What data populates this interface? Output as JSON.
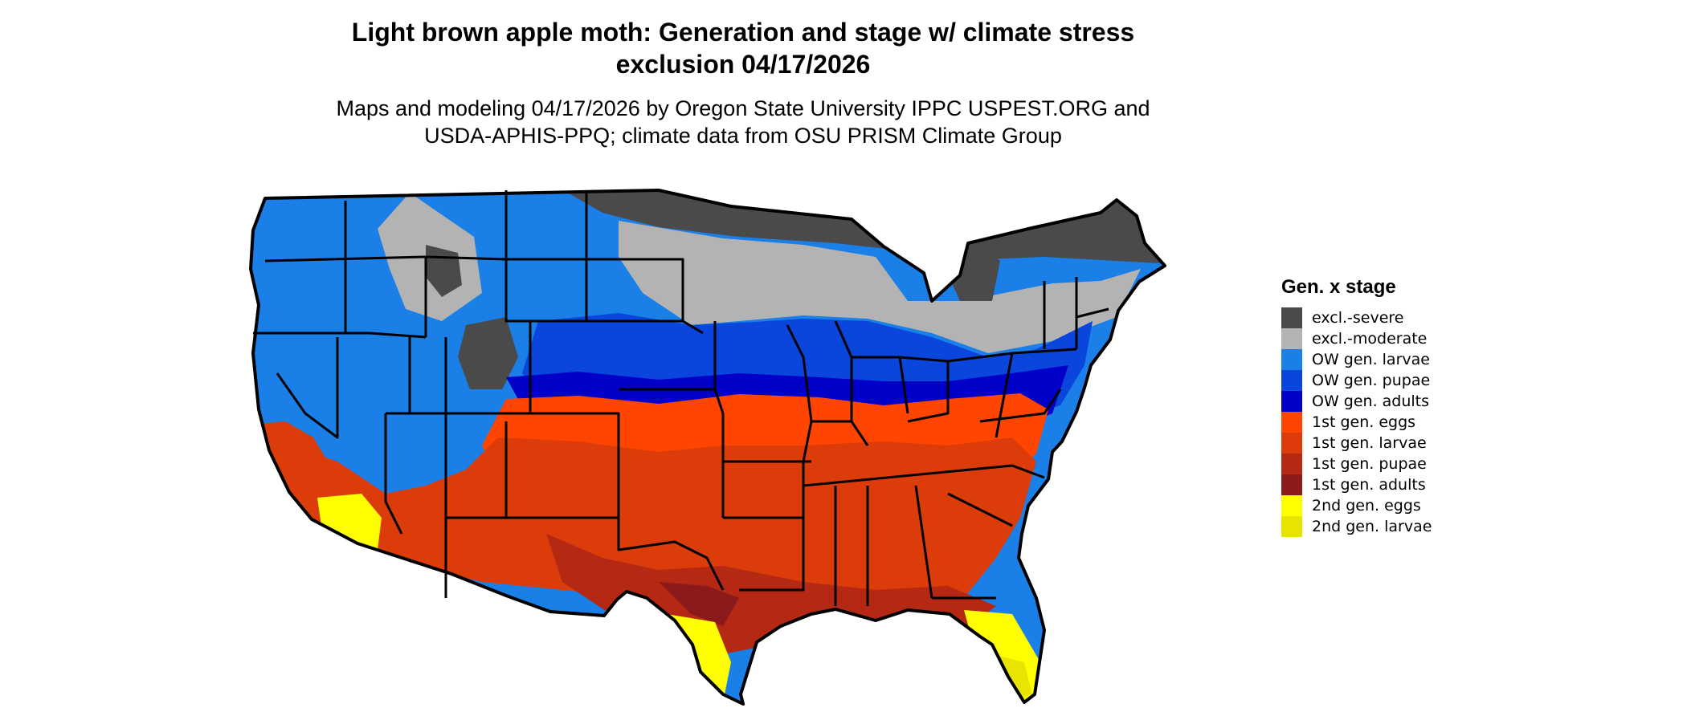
{
  "title": {
    "line1": "Light brown apple moth: Generation and stage w/ climate stress",
    "line2": "exclusion 04/17/2026"
  },
  "subtitle": {
    "line1": "Maps and modeling 04/17/2026 by Oregon State University IPPC USPEST.ORG and",
    "line2": "USDA-APHIS-PPQ; climate data from OSU PRISM Climate Group"
  },
  "legend": {
    "title": "Gen. x stage",
    "items": [
      {
        "label": "excl.-severe",
        "color": "#4a4a4a"
      },
      {
        "label": "excl.-moderate",
        "color": "#b3b3b3"
      },
      {
        "label": "OW gen. larvae",
        "color": "#1a7fe6"
      },
      {
        "label": "OW gen. pupae",
        "color": "#0a45dc"
      },
      {
        "label": "OW gen. adults",
        "color": "#0000c8"
      },
      {
        "label": "1st gen. eggs",
        "color": "#ff4500"
      },
      {
        "label": "1st gen. larvae",
        "color": "#dc3b0a"
      },
      {
        "label": "1st gen. pupae",
        "color": "#b42814"
      },
      {
        "label": "1st gen. adults",
        "color": "#8c1a1a"
      },
      {
        "label": "2nd gen. eggs",
        "color": "#ffff00"
      },
      {
        "label": "2nd gen. larvae",
        "color": "#e8e400"
      }
    ]
  }
}
